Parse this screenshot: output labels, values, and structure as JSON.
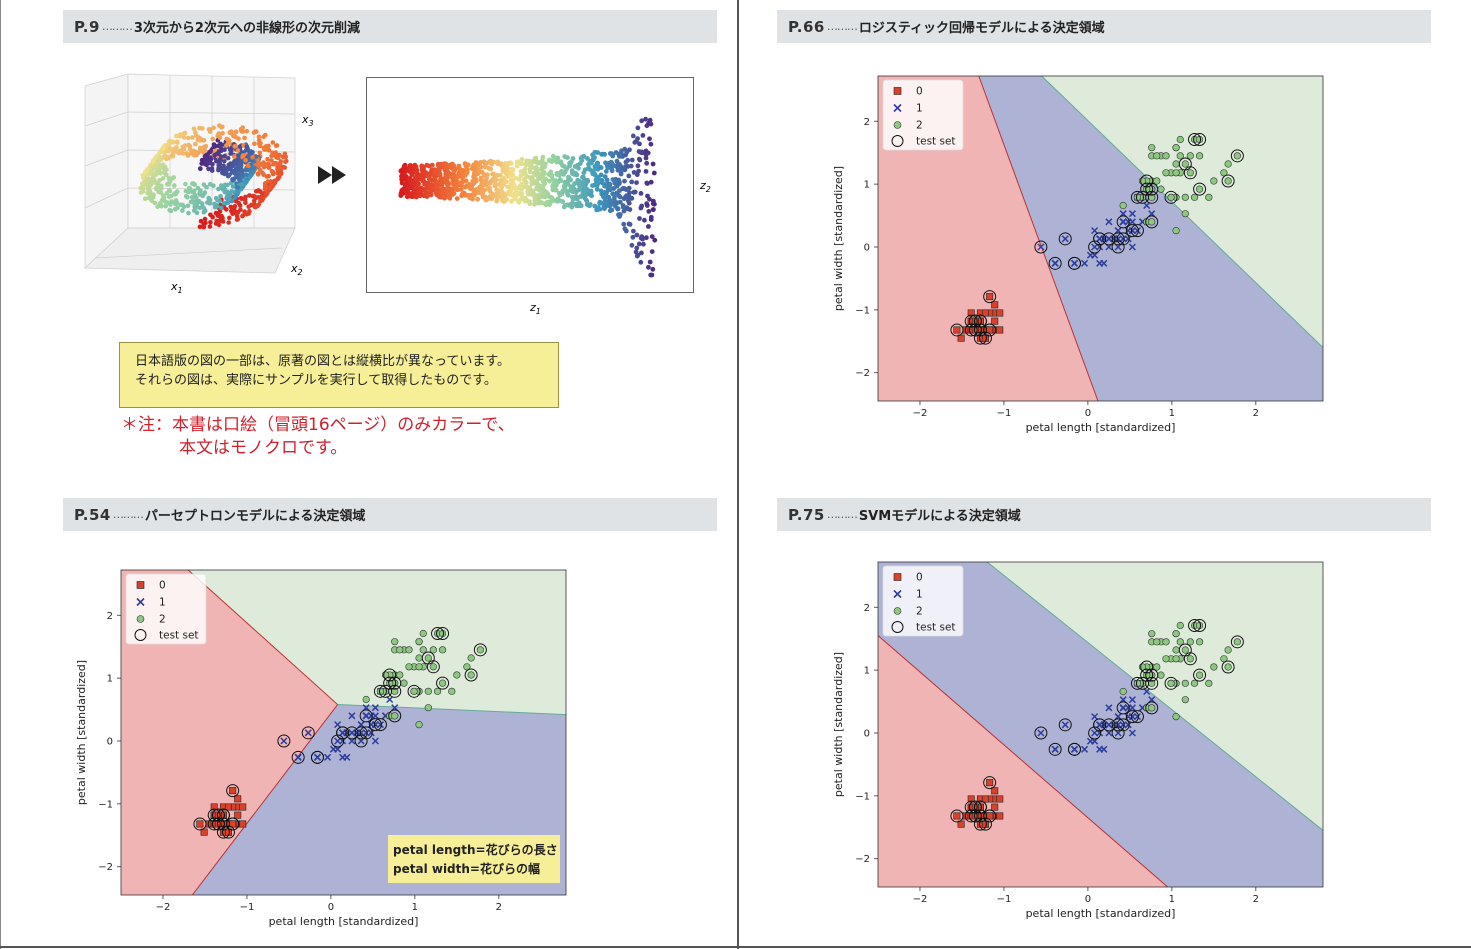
{
  "sections": [
    {
      "num": "P.9",
      "title": "3次元から2次元への非線形の次元削減"
    },
    {
      "num": "P.66",
      "title": "ロジスティック回帰モデルによる決定領域"
    },
    {
      "num": "P.54",
      "title": "パーセプトロンモデルによる決定領域"
    },
    {
      "num": "P.75",
      "title": "SVMモデルによる決定領域"
    }
  ],
  "section_dots": "………",
  "fig3d": {
    "x1": "x",
    "x1_sub": "1",
    "x2": "x",
    "x2_sub": "2",
    "x3": "x",
    "x3_sub": "3"
  },
  "fig2d": {
    "z1": "z",
    "z1_sub": "1",
    "z2": "z",
    "z2_sub": "2"
  },
  "note": {
    "line1": "日本語版の図の一部は、原著の図とは縦横比が異なっています。",
    "line2": "それらの図は、実際にサンプルを実行して取得したものです。"
  },
  "red_note": {
    "line1": "＊注：本書は口絵（冒頭16ページ）のみカラーで、",
    "line2": "本文はモノクロです。"
  },
  "translation_box": {
    "line1": "petal length=花びらの長さ",
    "line2": "petal width=花びらの幅"
  },
  "colors": {
    "class0": "#d9412b",
    "class1": "#2d3e9a",
    "class2": "#8cc880",
    "region0": "#f0b4b4",
    "region1": "#aeb3d6",
    "region2": "#deebdb",
    "header_bg": "#dfe3e6",
    "note_bg": "#f6ef97",
    "red_note": "#d21f2a"
  },
  "chart_data": [
    {
      "id": "logistic",
      "type": "scatter",
      "title": "",
      "xlabel": "petal length [standardized]",
      "ylabel": "petal width [standardized]",
      "xlim": [
        -2.5,
        2.8
      ],
      "ylim": [
        -2.45,
        2.72
      ],
      "xticks": [
        -2,
        -1,
        0,
        1,
        2
      ],
      "yticks": [
        -2,
        -1,
        0,
        1,
        2
      ],
      "tick_labels_x": [
        "−2",
        "−1",
        "0",
        "1",
        "2"
      ],
      "tick_labels_y": [
        "−2",
        "−1",
        "0",
        "1",
        "2"
      ],
      "legend": {
        "placement": "top-left",
        "entries": [
          "0",
          "1",
          "2",
          "test set"
        ]
      },
      "boundaries": {
        "b01": [
          [
            -1.3,
            2.72
          ],
          [
            0.12,
            -2.45
          ]
        ],
        "b12": [
          [
            -0.55,
            2.72
          ],
          [
            2.8,
            -1.6
          ]
        ]
      }
    },
    {
      "id": "perceptron",
      "type": "scatter",
      "title": "",
      "xlabel": "petal length [standardized]",
      "ylabel": "petal width [standardized]",
      "xlim": [
        -2.5,
        2.8
      ],
      "ylim": [
        -2.45,
        2.72
      ],
      "xticks": [
        -2,
        -1,
        0,
        1,
        2
      ],
      "yticks": [
        -2,
        -1,
        0,
        1,
        2
      ],
      "tick_labels_x": [
        "−2",
        "−1",
        "0",
        "1",
        "2"
      ],
      "tick_labels_y": [
        "−2",
        "−1",
        "0",
        "1",
        "2"
      ],
      "legend": {
        "placement": "top-left",
        "entries": [
          "0",
          "1",
          "2",
          "test set"
        ]
      },
      "boundaries": {
        "junction": [
          0.08,
          0.58
        ],
        "b01a": [
          [
            -1.7,
            2.72
          ]
        ],
        "b01b": [
          [
            -1.65,
            -2.45
          ]
        ],
        "b12": [
          [
            2.8,
            0.42
          ]
        ]
      }
    },
    {
      "id": "svm",
      "type": "scatter",
      "title": "",
      "xlabel": "petal length [standardized]",
      "ylabel": "petal width [standardized]",
      "xlim": [
        -2.5,
        2.8
      ],
      "ylim": [
        -2.45,
        2.72
      ],
      "xticks": [
        -2,
        -1,
        0,
        1,
        2
      ],
      "yticks": [
        -2,
        -1,
        0,
        1,
        2
      ],
      "tick_labels_x": [
        "−2",
        "−1",
        "0",
        "1",
        "2"
      ],
      "tick_labels_y": [
        "−2",
        "−1",
        "0",
        "1",
        "2"
      ],
      "legend": {
        "placement": "top-left",
        "entries": [
          "0",
          "1",
          "2",
          "test set"
        ]
      },
      "boundaries": {
        "b01": [
          [
            -2.5,
            1.55
          ],
          [
            0.95,
            -2.45
          ]
        ],
        "b12": [
          [
            -1.2,
            2.72
          ],
          [
            2.8,
            -1.55
          ]
        ]
      }
    }
  ],
  "iris_points": {
    "class0": [
      [
        -1.34,
        -1.32
      ],
      [
        -1.28,
        -1.32
      ],
      [
        -1.39,
        -1.32
      ],
      [
        -1.22,
        -1.32
      ],
      [
        -1.28,
        -1.18
      ],
      [
        -1.11,
        -1.05
      ],
      [
        -1.34,
        -1.18
      ],
      [
        -1.22,
        -1.32
      ],
      [
        -1.34,
        -1.32
      ],
      [
        -1.22,
        -1.45
      ],
      [
        -1.22,
        -1.32
      ],
      [
        -1.17,
        -1.32
      ],
      [
        -1.28,
        -1.45
      ],
      [
        -1.51,
        -1.45
      ],
      [
        -1.45,
        -1.32
      ],
      [
        -1.22,
        -1.05
      ],
      [
        -1.39,
        -1.05
      ],
      [
        -1.34,
        -1.18
      ],
      [
        -1.11,
        -1.18
      ],
      [
        -1.28,
        -1.18
      ],
      [
        -1.11,
        -1.32
      ],
      [
        -1.28,
        -1.05
      ],
      [
        -1.56,
        -1.32
      ],
      [
        -1.11,
        -0.92
      ],
      [
        -1.05,
        -1.32
      ],
      [
        -1.17,
        -1.32
      ],
      [
        -1.17,
        -1.05
      ],
      [
        -1.22,
        -1.32
      ],
      [
        -1.34,
        -1.32
      ],
      [
        -1.17,
        -1.32
      ],
      [
        -1.17,
        -1.32
      ],
      [
        -1.22,
        -1.05
      ],
      [
        -1.22,
        -1.45
      ],
      [
        -1.34,
        -1.32
      ],
      [
        -1.28,
        -1.32
      ],
      [
        -1.45,
        -1.32
      ],
      [
        -1.39,
        -1.32
      ],
      [
        -1.34,
        -1.18
      ],
      [
        -1.39,
        -1.32
      ],
      [
        -1.28,
        -1.32
      ],
      [
        -1.39,
        -1.18
      ],
      [
        -1.39,
        -1.18
      ],
      [
        -1.28,
        -1.32
      ],
      [
        -1.17,
        -0.79
      ],
      [
        -1.05,
        -1.05
      ],
      [
        -1.34,
        -1.18
      ],
      [
        -1.17,
        -1.32
      ],
      [
        -1.34,
        -1.32
      ],
      [
        -1.28,
        -1.32
      ],
      [
        -1.34,
        -1.32
      ]
    ],
    "class1": [
      [
        0.53,
        0.26
      ],
      [
        0.42,
        0.4
      ],
      [
        0.65,
        0.4
      ],
      [
        0.14,
        0.13
      ],
      [
        0.48,
        0.4
      ],
      [
        0.42,
        0.13
      ],
      [
        0.53,
        0.53
      ],
      [
        -0.39,
        -0.26
      ],
      [
        0.48,
        0.13
      ],
      [
        0.08,
        0.26
      ],
      [
        -0.16,
        -0.26
      ],
      [
        0.25,
        0.4
      ],
      [
        0.14,
        -0.26
      ],
      [
        0.53,
        0.26
      ],
      [
        -0.27,
        0.13
      ],
      [
        0.36,
        0.26
      ],
      [
        0.42,
        0.4
      ],
      [
        0.19,
        -0.26
      ],
      [
        0.42,
        0.4
      ],
      [
        0.08,
        -0.13
      ],
      [
        0.59,
        0.79
      ],
      [
        0.14,
        0.13
      ],
      [
        0.65,
        0.4
      ],
      [
        0.53,
        -0.0
      ],
      [
        0.31,
        0.13
      ],
      [
        0.36,
        0.26
      ],
      [
        0.59,
        0.26
      ],
      [
        0.7,
        0.66
      ],
      [
        0.42,
        0.4
      ],
      [
        -0.16,
        -0.26
      ],
      [
        0.03,
        -0.13
      ],
      [
        -0.04,
        -0.26
      ],
      [
        0.08,
        -0.0
      ],
      [
        0.76,
        0.53
      ],
      [
        0.42,
        0.4
      ],
      [
        0.42,
        0.53
      ],
      [
        0.53,
        0.4
      ],
      [
        0.36,
        0.13
      ],
      [
        0.19,
        0.13
      ],
      [
        0.14,
        0.13
      ],
      [
        0.36,
        -0.0
      ],
      [
        0.48,
        0.26
      ],
      [
        0.14,
        -0.0
      ],
      [
        -0.39,
        -0.26
      ],
      [
        0.25,
        0.13
      ],
      [
        0.25,
        -0.0
      ],
      [
        0.25,
        0.13
      ],
      [
        0.31,
        0.13
      ],
      [
        -0.56,
        -0.0
      ],
      [
        0.19,
        0.13
      ]
    ],
    "class2": [
      [
        1.27,
        1.71
      ],
      [
        0.76,
        0.92
      ],
      [
        1.22,
        1.18
      ],
      [
        1.05,
        0.79
      ],
      [
        1.16,
        1.32
      ],
      [
        1.62,
        1.18
      ],
      [
        0.42,
        0.66
      ],
      [
        1.44,
        0.79
      ],
      [
        1.16,
        0.79
      ],
      [
        1.33,
        1.71
      ],
      [
        0.76,
        1.05
      ],
      [
        0.87,
        0.92
      ],
      [
        0.99,
        1.18
      ],
      [
        0.7,
        1.05
      ],
      [
        0.76,
        1.58
      ],
      [
        0.87,
        1.45
      ],
      [
        0.99,
        0.79
      ],
      [
        1.67,
        1.32
      ],
      [
        1.78,
        1.45
      ],
      [
        0.7,
        0.4
      ],
      [
        1.1,
        1.45
      ],
      [
        0.65,
        1.05
      ],
      [
        1.67,
        1.05
      ],
      [
        0.65,
        0.79
      ],
      [
        1.1,
        1.18
      ],
      [
        1.27,
        0.79
      ],
      [
        0.59,
        0.79
      ],
      [
        0.65,
        0.79
      ],
      [
        1.05,
        1.18
      ],
      [
        1.16,
        0.53
      ],
      [
        1.33,
        0.92
      ],
      [
        1.5,
        1.05
      ],
      [
        1.05,
        1.32
      ],
      [
        0.76,
        0.4
      ],
      [
        1.05,
        0.26
      ],
      [
        1.33,
        1.45
      ],
      [
        1.05,
        1.58
      ],
      [
        0.99,
        0.79
      ],
      [
        0.59,
        0.79
      ],
      [
        0.93,
        1.18
      ],
      [
        1.05,
        1.58
      ],
      [
        0.76,
        1.45
      ],
      [
        0.76,
        0.92
      ],
      [
        1.22,
        1.45
      ],
      [
        1.1,
        1.71
      ],
      [
        0.82,
        1.45
      ],
      [
        0.7,
        0.92
      ],
      [
        0.82,
        1.05
      ],
      [
        0.93,
        1.45
      ],
      [
        0.76,
        0.79
      ]
    ],
    "test_indices": {
      "class0": [
        0,
        4,
        9,
        17,
        22,
        25,
        30,
        36,
        41,
        45,
        48,
        19,
        12,
        33,
        43
      ],
      "class1": [
        0,
        3,
        7,
        10,
        14,
        18,
        21,
        26,
        32,
        37,
        44,
        48,
        29,
        40,
        5
      ],
      "class2": [
        0,
        4,
        9,
        13,
        18,
        22,
        27,
        33,
        38,
        42,
        46,
        49,
        2,
        16,
        30
      ]
    }
  }
}
